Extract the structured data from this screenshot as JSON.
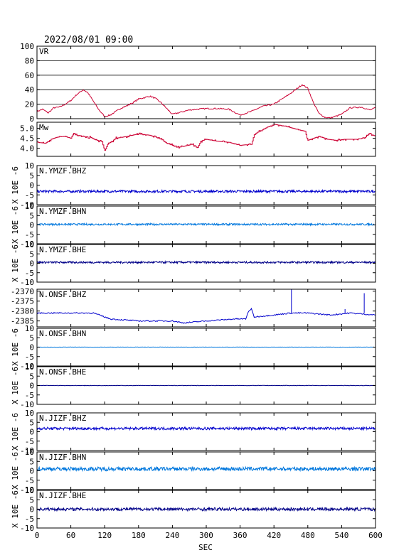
{
  "header": {
    "datetime": "2022/08/01 09:00"
  },
  "chart_data": {
    "type": "line",
    "xlabel": "SEC",
    "xlim": [
      0,
      600
    ],
    "xticks": [
      "0",
      "60",
      "120",
      "180",
      "240",
      "300",
      "360",
      "420",
      "480",
      "540",
      "600"
    ],
    "colors": {
      "vr": "#cc0033",
      "mw": "#cc0033",
      "blue": "#0000cc",
      "lightblue": "#0077dd",
      "darkblue": "#000088"
    },
    "panels": [
      {
        "id": "vr",
        "label": "VR",
        "ylim": [
          0,
          100
        ],
        "yticks": [
          "0",
          "20",
          "40",
          "60",
          "80",
          "100"
        ],
        "grid": true,
        "color_key": "vr",
        "points": [
          [
            0,
            10
          ],
          [
            10,
            13
          ],
          [
            20,
            8
          ],
          [
            30,
            15
          ],
          [
            40,
            16
          ],
          [
            50,
            20
          ],
          [
            60,
            25
          ],
          [
            70,
            33
          ],
          [
            82,
            40
          ],
          [
            90,
            36
          ],
          [
            100,
            24
          ],
          [
            110,
            12
          ],
          [
            120,
            3
          ],
          [
            130,
            5
          ],
          [
            140,
            10
          ],
          [
            150,
            15
          ],
          [
            160,
            18
          ],
          [
            170,
            22
          ],
          [
            180,
            27
          ],
          [
            200,
            31
          ],
          [
            210,
            28
          ],
          [
            220,
            22
          ],
          [
            230,
            14
          ],
          [
            240,
            6
          ],
          [
            250,
            8
          ],
          [
            260,
            10
          ],
          [
            270,
            12
          ],
          [
            285,
            13
          ],
          [
            300,
            14
          ],
          [
            320,
            14
          ],
          [
            340,
            13
          ],
          [
            360,
            5
          ],
          [
            380,
            10
          ],
          [
            400,
            17
          ],
          [
            420,
            20
          ],
          [
            440,
            30
          ],
          [
            455,
            38
          ],
          [
            470,
            47
          ],
          [
            480,
            42
          ],
          [
            490,
            22
          ],
          [
            500,
            7
          ],
          [
            510,
            2
          ],
          [
            520,
            1
          ],
          [
            540,
            6
          ],
          [
            555,
            15
          ],
          [
            575,
            16
          ],
          [
            590,
            12
          ],
          [
            600,
            15
          ]
        ]
      },
      {
        "id": "mw",
        "label": "Mw",
        "ylim": [
          3.6,
          5.3
        ],
        "yticks": [
          "4.0",
          "4.5",
          "5.0"
        ],
        "grid": false,
        "color_key": "mw",
        "points": [
          [
            0,
            4.3
          ],
          [
            15,
            4.25
          ],
          [
            25,
            4.45
          ],
          [
            35,
            4.55
          ],
          [
            50,
            4.6
          ],
          [
            60,
            4.5
          ],
          [
            65,
            4.75
          ],
          [
            80,
            4.6
          ],
          [
            95,
            4.55
          ],
          [
            105,
            4.4
          ],
          [
            115,
            4.35
          ],
          [
            120,
            3.85
          ],
          [
            125,
            4.2
          ],
          [
            140,
            4.5
          ],
          [
            160,
            4.6
          ],
          [
            180,
            4.72
          ],
          [
            200,
            4.65
          ],
          [
            220,
            4.45
          ],
          [
            230,
            4.25
          ],
          [
            240,
            4.15
          ],
          [
            250,
            4.05
          ],
          [
            260,
            4.1
          ],
          [
            275,
            4.2
          ],
          [
            285,
            4.05
          ],
          [
            290,
            4.35
          ],
          [
            300,
            4.45
          ],
          [
            320,
            4.35
          ],
          [
            340,
            4.3
          ],
          [
            360,
            4.15
          ],
          [
            380,
            4.2
          ],
          [
            385,
            4.7
          ],
          [
            395,
            4.85
          ],
          [
            405,
            5.0
          ],
          [
            420,
            5.2
          ],
          [
            440,
            5.1
          ],
          [
            460,
            4.95
          ],
          [
            475,
            4.85
          ],
          [
            480,
            4.4
          ],
          [
            490,
            4.5
          ],
          [
            500,
            4.6
          ],
          [
            515,
            4.45
          ],
          [
            530,
            4.4
          ],
          [
            545,
            4.45
          ],
          [
            565,
            4.45
          ],
          [
            580,
            4.5
          ],
          [
            590,
            4.75
          ],
          [
            600,
            4.55
          ]
        ]
      },
      {
        "id": "n_ymzf_bhz",
        "label": "N.YMZF.BHZ",
        "ylim": [
          -10,
          10
        ],
        "yticks": [
          "-10",
          "-5",
          "0",
          "5",
          "10"
        ],
        "ylabel": "X 10E -6",
        "color_key": "blue",
        "base": -3.2,
        "noise": 0.6,
        "points": []
      },
      {
        "id": "n_ymzf_bhn",
        "label": "N.YMZF.BHN",
        "ylim": [
          -10,
          10
        ],
        "yticks": [
          "-10",
          "-5",
          "0",
          "5",
          "10"
        ],
        "ylabel": "X 10E -6",
        "color_key": "lightblue",
        "base": 0.3,
        "noise": 0.5,
        "points": []
      },
      {
        "id": "n_ymzf_bhe",
        "label": "N.YMZF.BHE",
        "ylim": [
          -10,
          10
        ],
        "yticks": [
          "-10",
          "-5",
          "0",
          "5",
          "10"
        ],
        "ylabel": "X 10E -6",
        "color_key": "darkblue",
        "base": 0.5,
        "noise": 0.5,
        "points": []
      },
      {
        "id": "n_onsf_bhz",
        "label": "N.ONSF.BHZ",
        "ylim": [
          -2388,
          -2369
        ],
        "yticks": [
          "-2385",
          "-2380",
          "-2375",
          "-2370"
        ],
        "ylabel": "",
        "color_key": "blue",
        "noise": 0.6,
        "points": [
          [
            0,
            -2381
          ],
          [
            50,
            -2381
          ],
          [
            100,
            -2381
          ],
          [
            120,
            -2383
          ],
          [
            130,
            -2384
          ],
          [
            180,
            -2385
          ],
          [
            240,
            -2385
          ],
          [
            260,
            -2386
          ],
          [
            300,
            -2385
          ],
          [
            350,
            -2384
          ],
          [
            370,
            -2384
          ],
          [
            375,
            -2380
          ],
          [
            380,
            -2379
          ],
          [
            385,
            -2383
          ],
          [
            420,
            -2382
          ],
          [
            450,
            -2381
          ],
          [
            480,
            -2381
          ],
          [
            520,
            -2382
          ],
          [
            555,
            -2381
          ],
          [
            600,
            -2382
          ]
        ],
        "spikes": [
          [
            451,
            -2369
          ],
          [
            546,
            -2379
          ],
          [
            580,
            -2371
          ]
        ]
      },
      {
        "id": "n_onsf_bhn",
        "label": "N.ONSF.BHN",
        "ylim": [
          -10,
          10
        ],
        "yticks": [
          "-10",
          "-5",
          "0",
          "5",
          "10"
        ],
        "ylabel": "X 10E -6",
        "color_key": "lightblue",
        "base": 0,
        "noise": 0.08,
        "points": []
      },
      {
        "id": "n_onsf_bhe",
        "label": "N.ONSF.BHE",
        "ylim": [
          -10,
          10
        ],
        "yticks": [
          "-10",
          "-5",
          "0",
          "5",
          "10"
        ],
        "ylabel": "X 10E -6",
        "color_key": "darkblue",
        "base": 0,
        "noise": 0.1,
        "points": []
      },
      {
        "id": "n_jizf_bhz",
        "label": "N.JIZF.BHZ",
        "ylim": [
          -10,
          10
        ],
        "yticks": [
          "-10",
          "-5",
          "0",
          "5",
          "10"
        ],
        "ylabel": "X 10E -6",
        "color_key": "blue",
        "base": 1.7,
        "noise": 0.7,
        "points": []
      },
      {
        "id": "n_jizf_bhn",
        "label": "N.JIZF.BHN",
        "ylim": [
          -10,
          10
        ],
        "yticks": [
          "-10",
          "-5",
          "0",
          "5",
          "10"
        ],
        "ylabel": "X 10E -6",
        "color_key": "lightblue",
        "base": 1.0,
        "noise": 1.0,
        "points": []
      },
      {
        "id": "n_jizf_bhe",
        "label": "N.JIZF.BHE",
        "ylim": [
          -10,
          10
        ],
        "yticks": [
          "-10",
          "-5",
          "0",
          "5",
          "10"
        ],
        "ylabel": "X 10E -6",
        "color_key": "darkblue",
        "base": 0,
        "noise": 0.8,
        "points": []
      }
    ]
  }
}
